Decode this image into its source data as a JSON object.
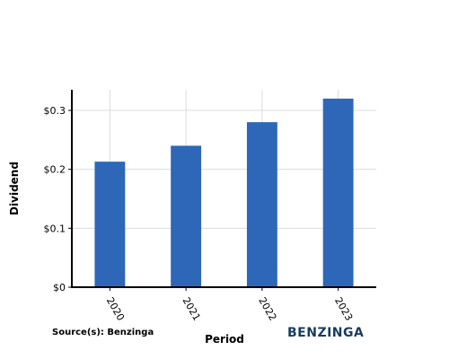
{
  "chart_data": {
    "type": "bar",
    "categories": [
      "2020",
      "2021",
      "2022",
      "2023"
    ],
    "values": [
      0.213,
      0.24,
      0.28,
      0.32
    ],
    "xlabel": "Period",
    "ylabel": "Dividend",
    "ylim": [
      0,
      0.335
    ],
    "yticks": [
      {
        "value": 0,
        "label": "$0"
      },
      {
        "value": 0.1,
        "label": "$0.1"
      },
      {
        "value": 0.2,
        "label": "$0.2"
      },
      {
        "value": 0.3,
        "label": "$0.3"
      }
    ],
    "bar_color": "#2e67b8",
    "grid": true,
    "legend": "none"
  },
  "footer": {
    "source": "Source(s): Benzinga",
    "brand": "BENZINGA"
  }
}
